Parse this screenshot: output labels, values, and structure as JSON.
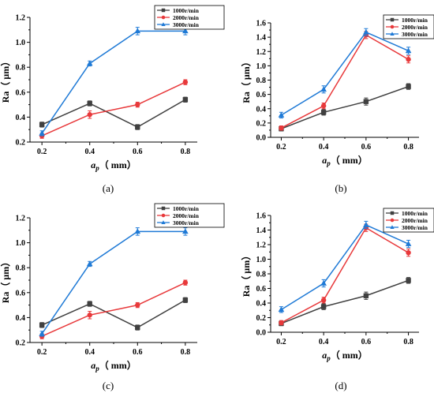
{
  "chart_data": [
    {
      "type": "line",
      "caption": "(a)",
      "ylabel": "Ra（ μm）",
      "xlabel_main": "a",
      "xlabel_sub": "p",
      "xlabel_rest": "（ mm）",
      "x": [
        0.2,
        0.4,
        0.6,
        0.8
      ],
      "xticks": [
        "0.2",
        "0.4",
        "0.6",
        "0.8"
      ],
      "xlim": [
        0.15,
        0.85
      ],
      "ylim": [
        0.2,
        1.2
      ],
      "yticks": [
        0.2,
        0.4,
        0.6,
        0.8,
        1.0,
        1.2
      ],
      "ytick_labels": [
        "0.2",
        "0.4",
        "0.6",
        "0.8",
        "1.0",
        "1.2"
      ],
      "legend_position": "top-right",
      "series": [
        {
          "name": "1000r/min",
          "color": "#404040",
          "marker": "square",
          "values": [
            0.34,
            0.51,
            0.32,
            0.54
          ],
          "errors": [
            0.02,
            0.02,
            0.02,
            0.02
          ]
        },
        {
          "name": "2000r/min",
          "color": "#e8393b",
          "marker": "circle",
          "values": [
            0.25,
            0.42,
            0.5,
            0.68
          ],
          "errors": [
            0.02,
            0.03,
            0.02,
            0.02
          ]
        },
        {
          "name": "3000r/min",
          "color": "#1f7ad6",
          "marker": "triangle",
          "values": [
            0.27,
            0.83,
            1.09,
            1.09
          ],
          "errors": [
            0.02,
            0.02,
            0.03,
            0.03
          ]
        }
      ]
    },
    {
      "type": "line",
      "caption": "(b)",
      "ylabel": "Ra（ μm）",
      "xlabel_main": "a",
      "xlabel_sub": "p",
      "xlabel_rest": "（ mm）",
      "x": [
        0.2,
        0.4,
        0.6,
        0.8
      ],
      "xticks": [
        "0.2",
        "0.4",
        "0.6",
        "0.8"
      ],
      "xlim": [
        0.15,
        0.85
      ],
      "ylim": [
        0.0,
        1.6
      ],
      "yticks": [
        0.0,
        0.2,
        0.4,
        0.6,
        0.8,
        1.0,
        1.2,
        1.4,
        1.6
      ],
      "ytick_labels": [
        "0.0",
        "0.2",
        "0.4",
        "0.6",
        "0.8",
        "1.0",
        "1.2",
        "1.4",
        "1.6"
      ],
      "legend_position": "top-right",
      "series": [
        {
          "name": "1000r/min",
          "color": "#404040",
          "marker": "square",
          "values": [
            0.12,
            0.35,
            0.5,
            0.71
          ],
          "errors": [
            0.03,
            0.04,
            0.05,
            0.04
          ]
        },
        {
          "name": "2000r/min",
          "color": "#e8393b",
          "marker": "circle",
          "values": [
            0.13,
            0.44,
            1.43,
            1.09
          ],
          "errors": [
            0.03,
            0.04,
            0.05,
            0.05
          ]
        },
        {
          "name": "3000r/min",
          "color": "#1f7ad6",
          "marker": "triangle",
          "values": [
            0.31,
            0.67,
            1.47,
            1.21
          ],
          "errors": [
            0.04,
            0.05,
            0.05,
            0.05
          ]
        }
      ]
    },
    {
      "type": "line",
      "caption": "(c)",
      "ylabel": "Ra（ μm）",
      "xlabel_main": "a",
      "xlabel_sub": "p",
      "xlabel_rest": "（ mm）",
      "x": [
        0.2,
        0.4,
        0.6,
        0.8
      ],
      "xticks": [
        "0.2",
        "0.4",
        "0.6",
        "0.8"
      ],
      "xlim": [
        0.15,
        0.85
      ],
      "ylim": [
        0.2,
        1.2
      ],
      "yticks": [
        0.2,
        0.4,
        0.6,
        0.8,
        1.0,
        1.2
      ],
      "ytick_labels": [
        "0.2",
        "0.4",
        "0.6",
        "0.8",
        "1.0",
        "1.2"
      ],
      "legend_position": "top-right",
      "series": [
        {
          "name": "1000r/min",
          "color": "#404040",
          "marker": "square",
          "values": [
            0.34,
            0.51,
            0.32,
            0.54
          ],
          "errors": [
            0.02,
            0.02,
            0.02,
            0.02
          ]
        },
        {
          "name": "2000r/min",
          "color": "#e8393b",
          "marker": "circle",
          "values": [
            0.25,
            0.42,
            0.5,
            0.68
          ],
          "errors": [
            0.02,
            0.03,
            0.02,
            0.02
          ]
        },
        {
          "name": "3000r/min",
          "color": "#1f7ad6",
          "marker": "triangle",
          "values": [
            0.27,
            0.83,
            1.09,
            1.09
          ],
          "errors": [
            0.02,
            0.02,
            0.03,
            0.03
          ]
        }
      ]
    },
    {
      "type": "line",
      "caption": "(d)",
      "ylabel": "Ra（ μm）",
      "xlabel_main": "a",
      "xlabel_sub": "p",
      "xlabel_rest": "（ mm）",
      "x": [
        0.2,
        0.4,
        0.6,
        0.8
      ],
      "xticks": [
        "0.2",
        "0.4",
        "0.6",
        "0.8"
      ],
      "xlim": [
        0.15,
        0.85
      ],
      "ylim": [
        0.0,
        1.6
      ],
      "yticks": [
        0.0,
        0.2,
        0.4,
        0.6,
        0.8,
        1.0,
        1.2,
        1.4,
        1.6
      ],
      "ytick_labels": [
        "0.0",
        "0.2",
        "0.4",
        "0.6",
        "0.8",
        "1.0",
        "1.2",
        "1.4",
        "1.6"
      ],
      "legend_position": "top-right",
      "series": [
        {
          "name": "1000r/min",
          "color": "#404040",
          "marker": "square",
          "values": [
            0.12,
            0.35,
            0.5,
            0.71
          ],
          "errors": [
            0.03,
            0.04,
            0.05,
            0.04
          ]
        },
        {
          "name": "2000r/min",
          "color": "#e8393b",
          "marker": "circle",
          "values": [
            0.13,
            0.44,
            1.43,
            1.09
          ],
          "errors": [
            0.03,
            0.04,
            0.05,
            0.05
          ]
        },
        {
          "name": "3000r/min",
          "color": "#1f7ad6",
          "marker": "triangle",
          "values": [
            0.31,
            0.67,
            1.47,
            1.21
          ],
          "errors": [
            0.04,
            0.05,
            0.05,
            0.05
          ]
        }
      ]
    }
  ]
}
